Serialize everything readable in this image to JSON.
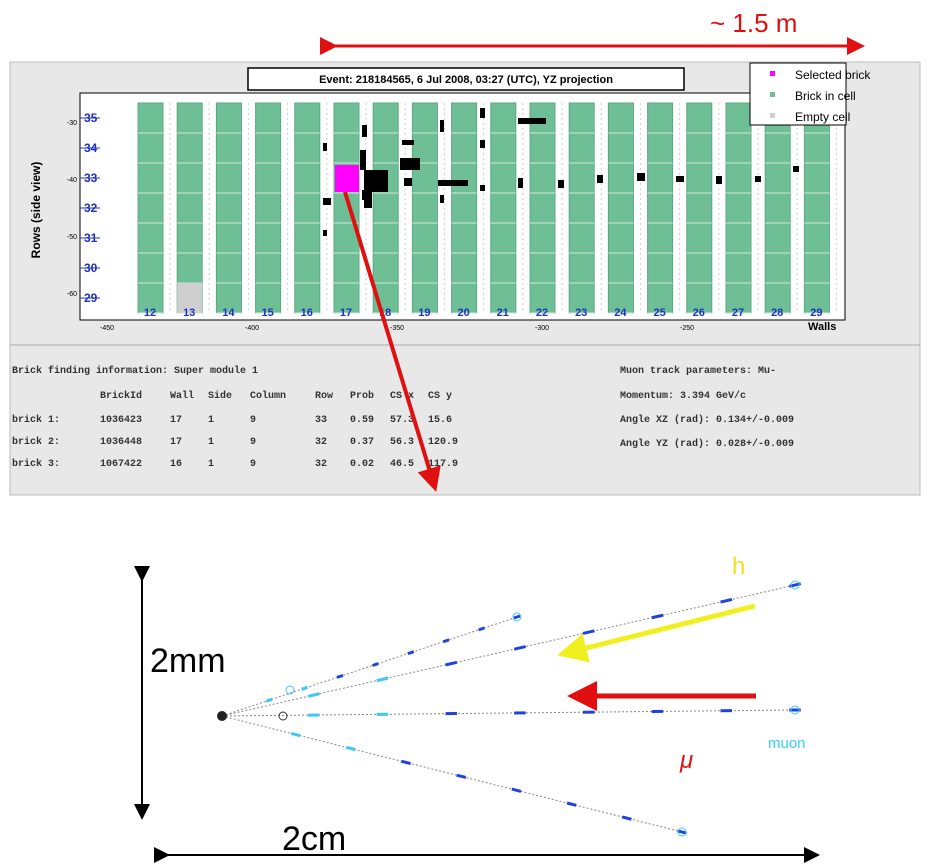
{
  "scale_label": "~ 1.5 m",
  "event_display": {
    "title": "Event: 218184565,  6 Jul 2008, 03:27 (UTC), YZ projection",
    "legend": [
      "Selected brick",
      "Brick in cell",
      "Empty cell"
    ],
    "y_axis_label": "Rows (side view)",
    "rows": [
      "35",
      "34",
      "33",
      "32",
      "31",
      "30",
      "29"
    ],
    "y_ticks": [
      "-30",
      "-40",
      "-50",
      "-60"
    ],
    "walls": [
      "12",
      "13",
      "14",
      "15",
      "16",
      "17",
      "18",
      "19",
      "20",
      "21",
      "22",
      "23",
      "24",
      "25",
      "26",
      "27",
      "28",
      "29"
    ],
    "x_axis_label": "Walls",
    "x_ticks": [
      "-450",
      "-400",
      "-350",
      "-300",
      "-250"
    ]
  },
  "brick_info": {
    "title": "Brick finding information: Super module 1",
    "header": [
      "BrickId",
      "Wall",
      "Side",
      "Column",
      "Row",
      "Prob",
      "CS x",
      "CS y"
    ],
    "rows": [
      [
        "brick 1:",
        "1036423",
        "17",
        "1",
        "9",
        "33",
        "0.59",
        "57.3",
        "15.6"
      ],
      [
        "brick 2:",
        "1036448",
        "17",
        "1",
        "9",
        "32",
        "0.37",
        "56.3",
        "120.9"
      ],
      [
        "brick 3:",
        "1067422",
        "16",
        "1",
        "9",
        "32",
        "0.02",
        "46.5",
        "117.9"
      ]
    ]
  },
  "muon_params": {
    "title": "Muon track parameters: Mu-",
    "lines": [
      "Momentum: 3.394 GeV/c",
      "Angle XZ (rad):  0.134+/-0.009",
      "Angle YZ (rad):  0.028+/-0.009"
    ]
  },
  "sketch": {
    "h_label": "h",
    "muon_label": "muon",
    "mu_label": "μ",
    "height_label": "2mm",
    "width_label": "2cm"
  }
}
